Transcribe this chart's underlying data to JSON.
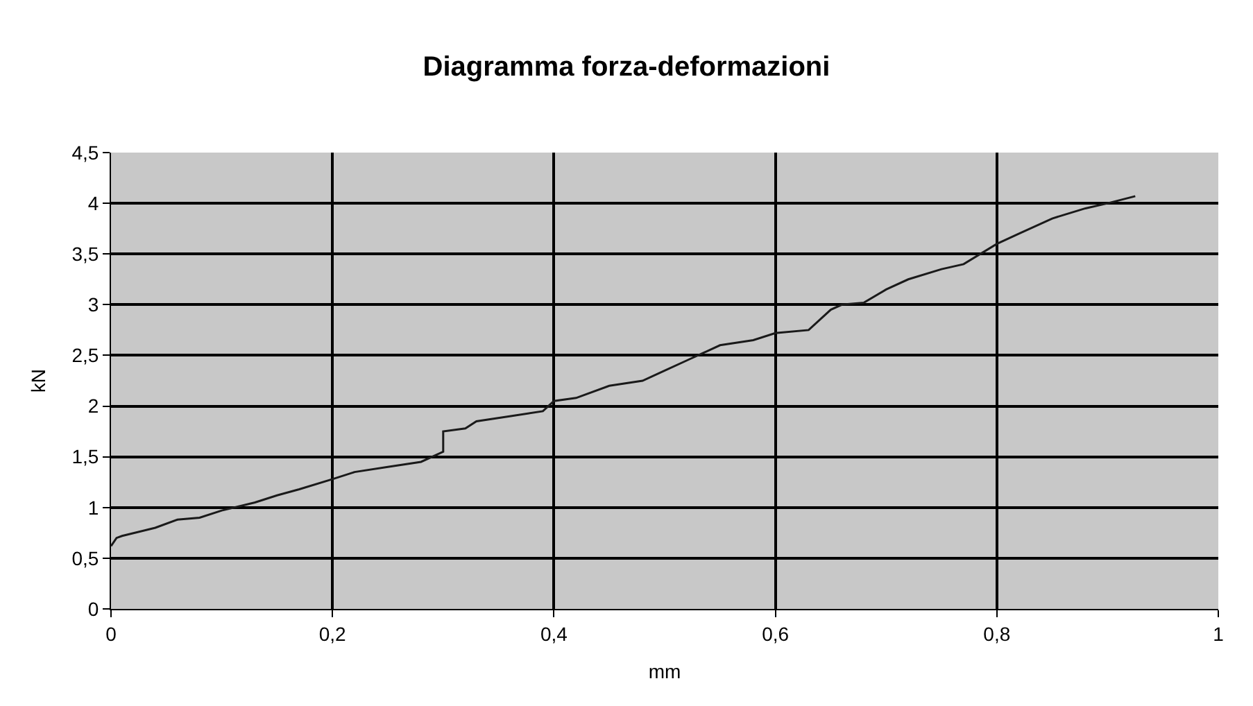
{
  "chart_data": {
    "type": "line",
    "title": "Diagramma forza-deformazioni",
    "xlabel": "mm",
    "ylabel": "kN",
    "x": [
      0,
      0.005,
      0.01,
      0.04,
      0.06,
      0.08,
      0.1,
      0.13,
      0.15,
      0.17,
      0.2,
      0.22,
      0.25,
      0.28,
      0.3,
      0.3,
      0.32,
      0.33,
      0.36,
      0.39,
      0.4,
      0.42,
      0.45,
      0.48,
      0.5,
      0.52,
      0.55,
      0.58,
      0.6,
      0.63,
      0.65,
      0.66,
      0.68,
      0.7,
      0.72,
      0.75,
      0.77,
      0.8,
      0.82,
      0.85,
      0.88,
      0.9,
      0.925
    ],
    "series": [
      {
        "color": "#1a1a1a",
        "values": [
          0.62,
          0.7,
          0.72,
          0.8,
          0.88,
          0.9,
          0.97,
          1.05,
          1.12,
          1.18,
          1.28,
          1.35,
          1.4,
          1.45,
          1.55,
          1.75,
          1.78,
          1.85,
          1.9,
          1.95,
          2.05,
          2.08,
          2.2,
          2.25,
          2.35,
          2.45,
          2.6,
          2.65,
          2.72,
          2.75,
          2.95,
          3.0,
          3.02,
          3.15,
          3.25,
          3.35,
          3.4,
          3.6,
          3.7,
          3.85,
          3.95,
          4.0,
          4.07
        ]
      }
    ],
    "xlim": [
      0,
      1
    ],
    "xticks": [
      0,
      {
        "value": 0.2,
        "label": "0,2"
      },
      {
        "value": 0.4,
        "label": "0,4"
      },
      {
        "value": 0.6,
        "label": "0,6"
      },
      {
        "value": 0.8,
        "label": "0,8"
      },
      1
    ],
    "ylim": [
      0,
      4.5
    ],
    "yticks": [
      0,
      {
        "value": 0.5,
        "label": "0,5"
      },
      1,
      {
        "value": 1.5,
        "label": "1,5"
      },
      2,
      {
        "value": 2.5,
        "label": "2,5"
      },
      3,
      {
        "value": 3.5,
        "label": "3,5"
      },
      4,
      {
        "value": 4.5,
        "label": "4,5"
      }
    ],
    "grid": true,
    "legend": false,
    "marker": "none",
    "line_style": "solid"
  }
}
